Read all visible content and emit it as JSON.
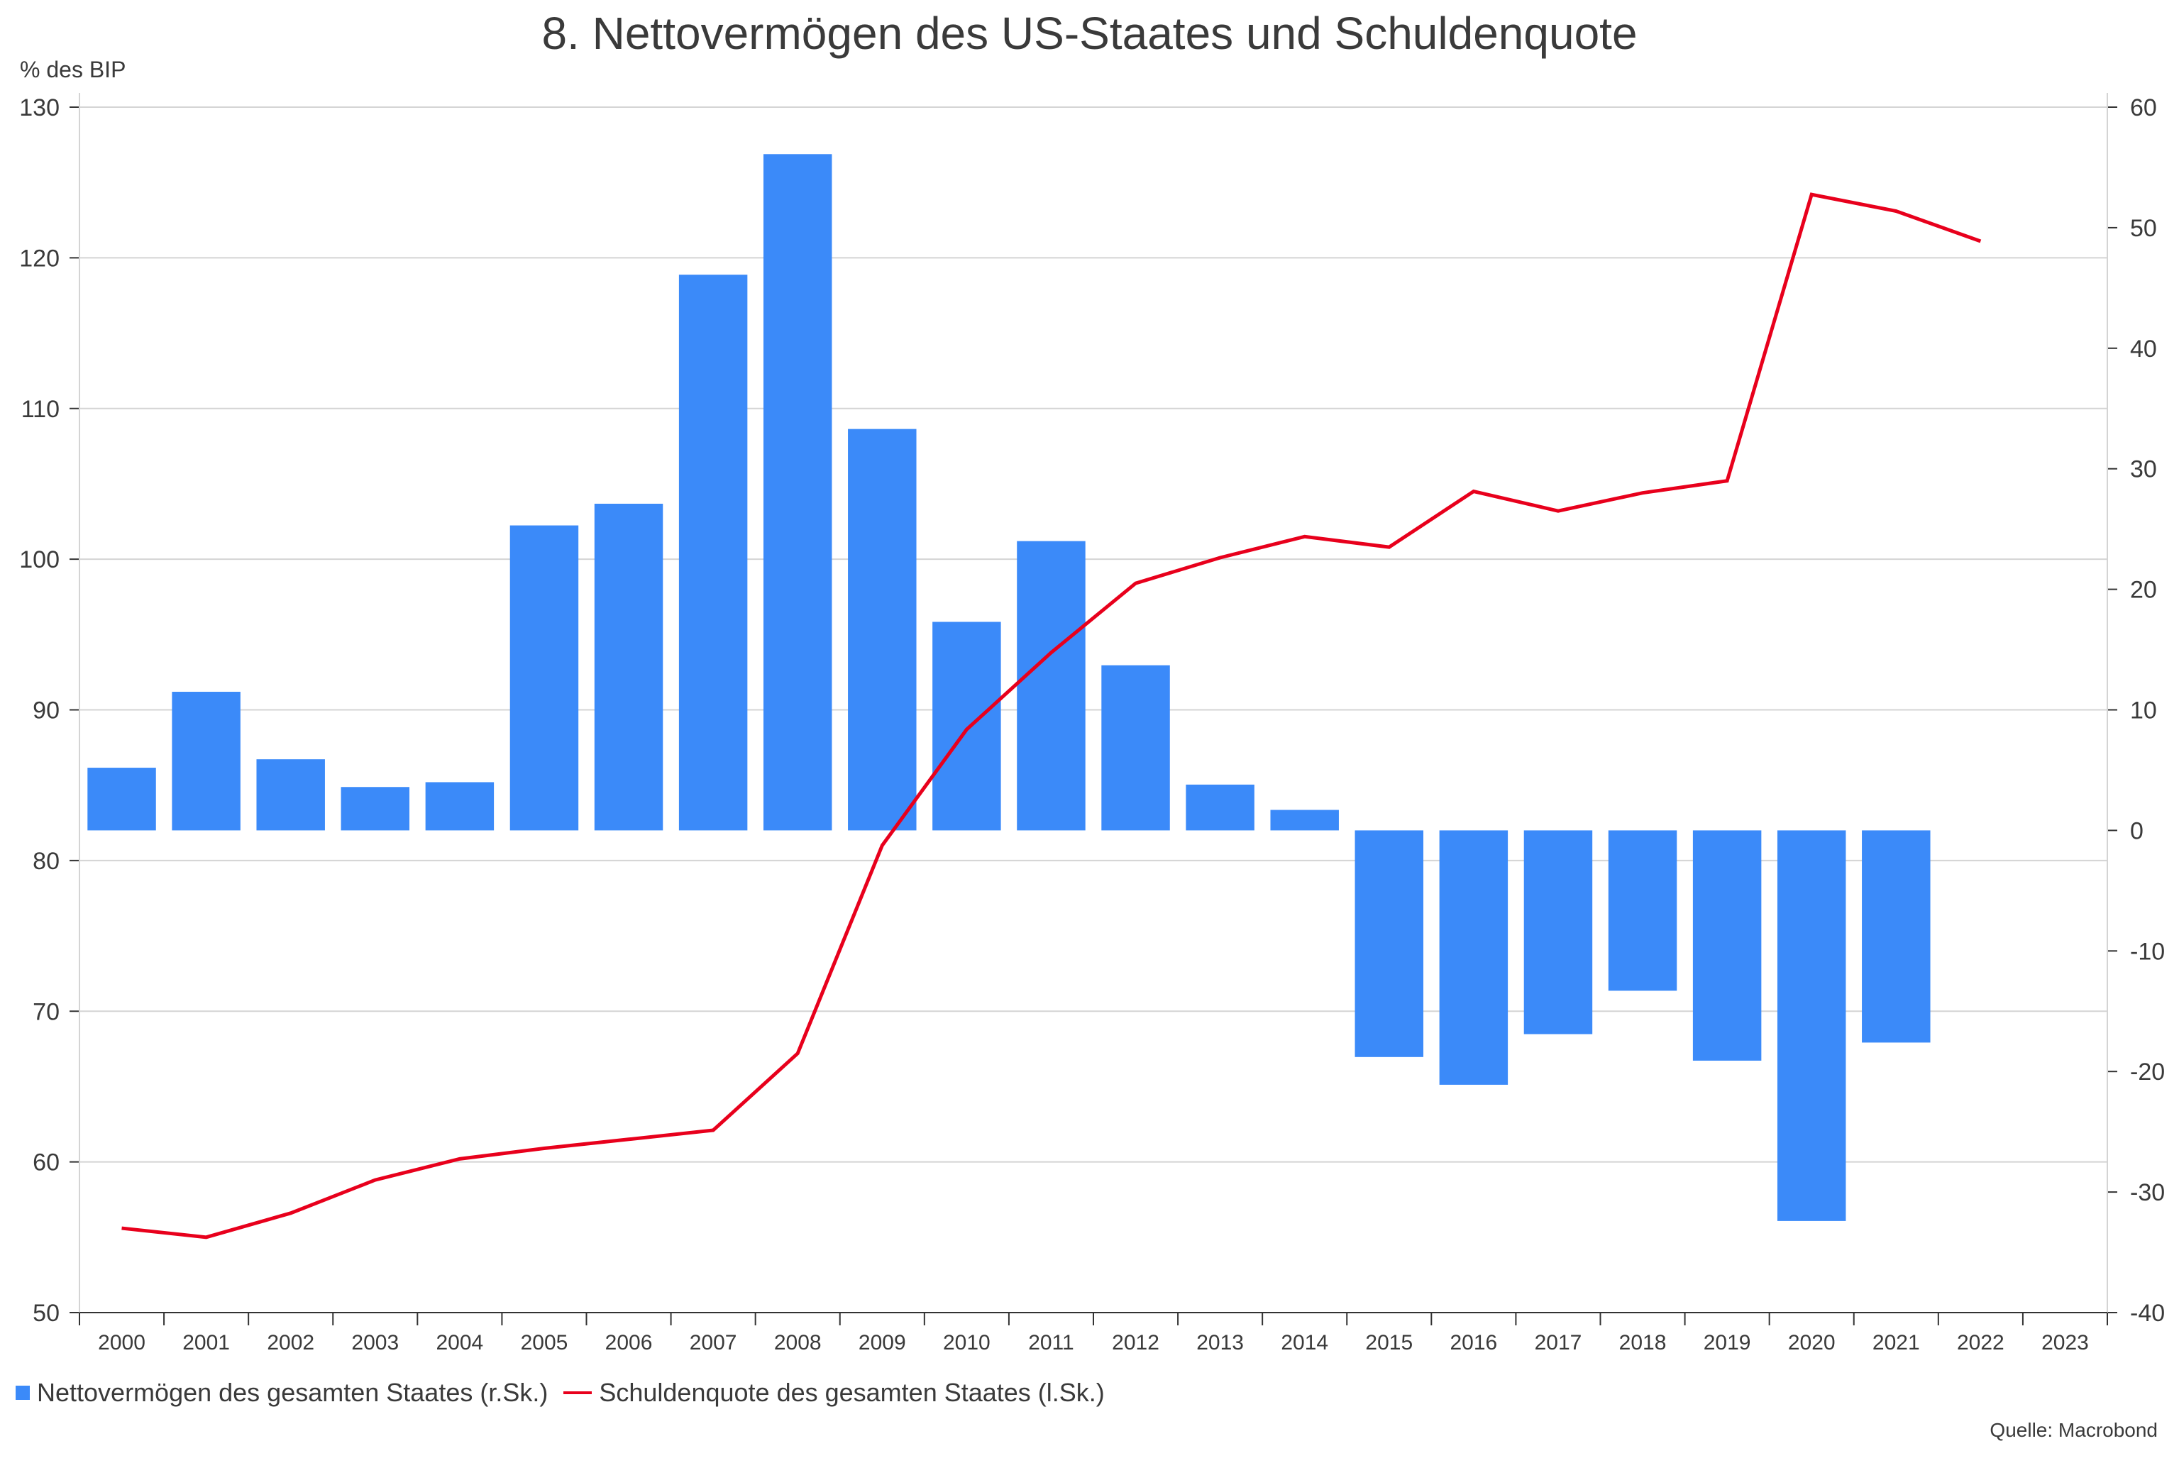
{
  "chart_data": {
    "type": "bar+line",
    "title": "8. Nettovermögen des US-Staates und Schuldenquote",
    "ylabel_left": "% des BIP",
    "categories": [
      "2000",
      "2001",
      "2002",
      "2003",
      "2004",
      "2005",
      "2006",
      "2007",
      "2008",
      "2009",
      "2010",
      "2011",
      "2012",
      "2013",
      "2014",
      "2015",
      "2016",
      "2017",
      "2018",
      "2019",
      "2020",
      "2021",
      "2022",
      "2023"
    ],
    "left_axis": {
      "range": [
        50,
        130
      ],
      "ticks": [
        50,
        60,
        70,
        80,
        90,
        100,
        110,
        120,
        130
      ]
    },
    "right_axis": {
      "range": [
        -40,
        60
      ],
      "ticks": [
        -40,
        -30,
        -20,
        -10,
        0,
        10,
        20,
        30,
        40,
        50,
        60
      ]
    },
    "grid": true,
    "legend_position": "bottom-left",
    "series": [
      {
        "name": "Nettovermögen des gesamten Staates (r.Sk.)",
        "type": "bar",
        "axis": "right",
        "color": "#3b8af9",
        "values": [
          5.2,
          11.5,
          5.9,
          3.6,
          4.0,
          25.3,
          27.1,
          46.1,
          56.1,
          33.3,
          17.3,
          24.0,
          13.7,
          3.8,
          1.7,
          -18.8,
          -21.1,
          -16.9,
          -13.3,
          -19.1,
          -32.4,
          -17.6,
          null,
          null
        ]
      },
      {
        "name": "Schuldenquote des gesamten Staates (l.Sk.)",
        "type": "line",
        "axis": "left",
        "color": "#e8001c",
        "values": [
          55.6,
          55.0,
          56.6,
          58.8,
          60.2,
          60.9,
          61.5,
          62.1,
          67.2,
          81.0,
          88.7,
          93.8,
          98.4,
          100.1,
          101.5,
          100.8,
          104.5,
          103.2,
          104.4,
          105.2,
          124.2,
          123.1,
          121.1,
          null
        ]
      }
    ],
    "source": "Quelle: Macrobond"
  }
}
